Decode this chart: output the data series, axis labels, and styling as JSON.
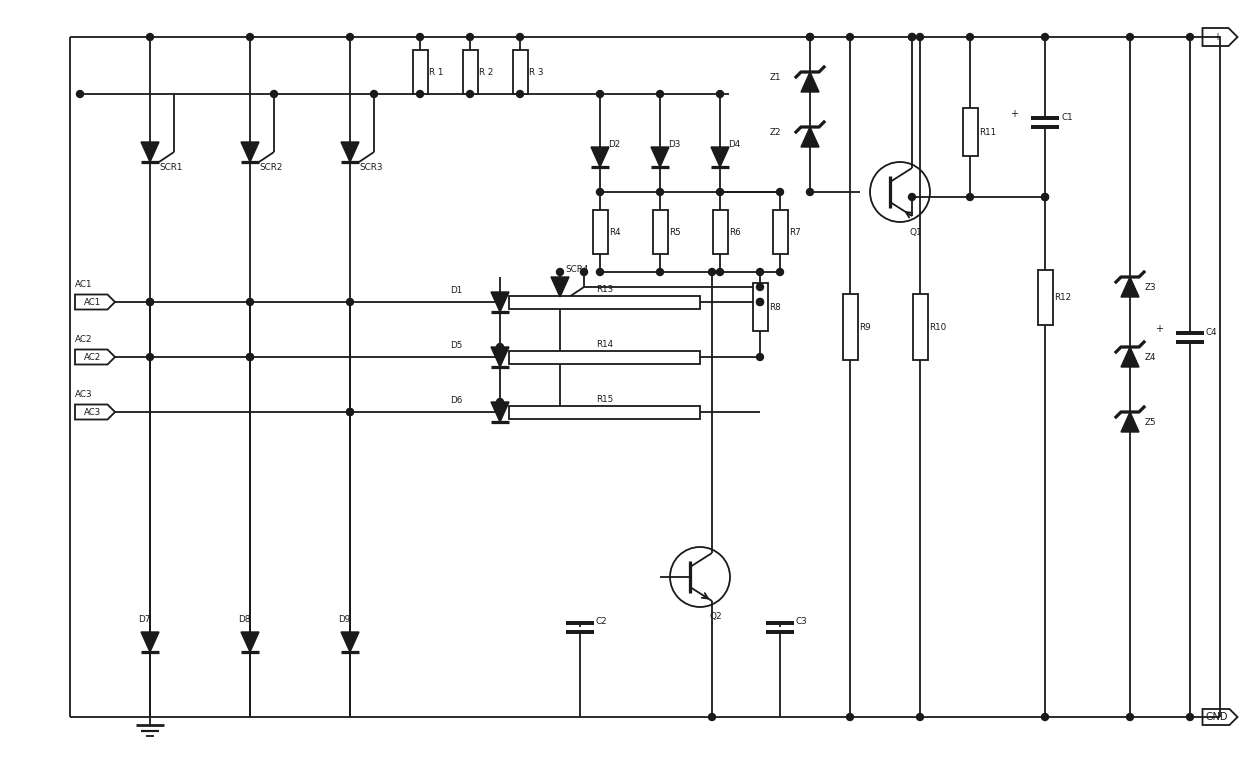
{
  "bg_color": "#ffffff",
  "line_color": "#1a1a1a",
  "lw": 1.3,
  "fig_width": 12.4,
  "fig_height": 7.57,
  "xlim": [
    0,
    124
  ],
  "ylim": [
    0,
    75.7
  ]
}
